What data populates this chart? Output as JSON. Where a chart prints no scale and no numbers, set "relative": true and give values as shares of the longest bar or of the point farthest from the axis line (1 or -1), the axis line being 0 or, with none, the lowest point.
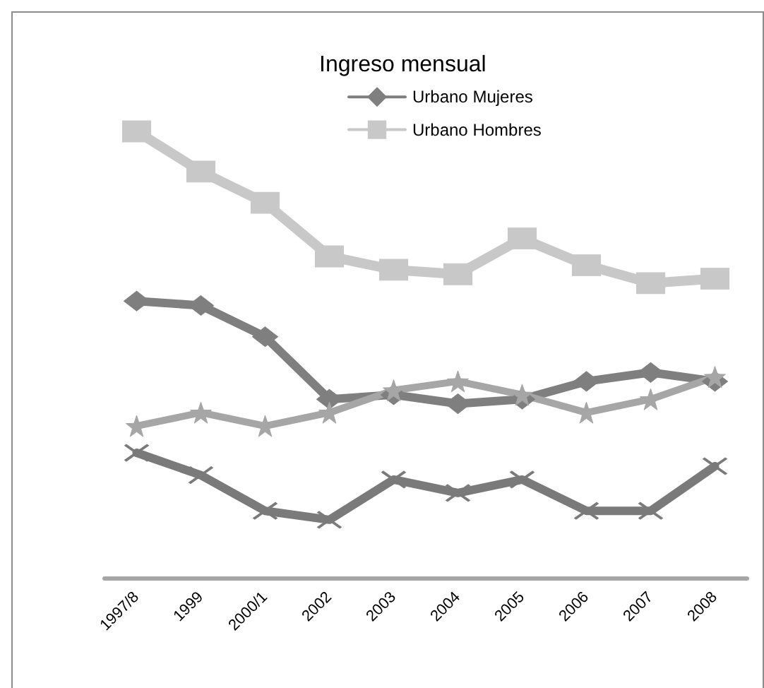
{
  "chart_data": {
    "type": "line",
    "title": "Ingreso mensual",
    "relative": true,
    "legend": "top",
    "line_style": "solid",
    "categories": [
      "1997/8",
      "1999",
      "2000/1",
      "2002",
      "2003",
      "2004",
      "2005",
      "2006",
      "2007",
      "2008"
    ],
    "series": [
      {
        "name": "Urbano Mujeres",
        "color": "#7f7f7f",
        "marker": "diamond",
        "values": [
          0.62,
          0.61,
          0.54,
          0.4,
          0.41,
          0.39,
          0.4,
          0.44,
          0.46,
          0.44
        ]
      },
      {
        "name": "Urbano Hombres",
        "color": "#c8c8c8",
        "marker": "square",
        "values": [
          1.0,
          0.91,
          0.84,
          0.72,
          0.69,
          0.68,
          0.76,
          0.7,
          0.66,
          0.67
        ]
      },
      {
        "color": "#a6a6a6",
        "marker": "star",
        "values": [
          0.34,
          0.37,
          0.34,
          0.37,
          0.42,
          0.44,
          0.41,
          0.37,
          0.4,
          0.45
        ]
      },
      {
        "color": "#7a7a7a",
        "marker": "cross",
        "values": [
          0.28,
          0.23,
          0.15,
          0.13,
          0.22,
          0.19,
          0.22,
          0.15,
          0.15,
          0.25
        ]
      }
    ]
  }
}
